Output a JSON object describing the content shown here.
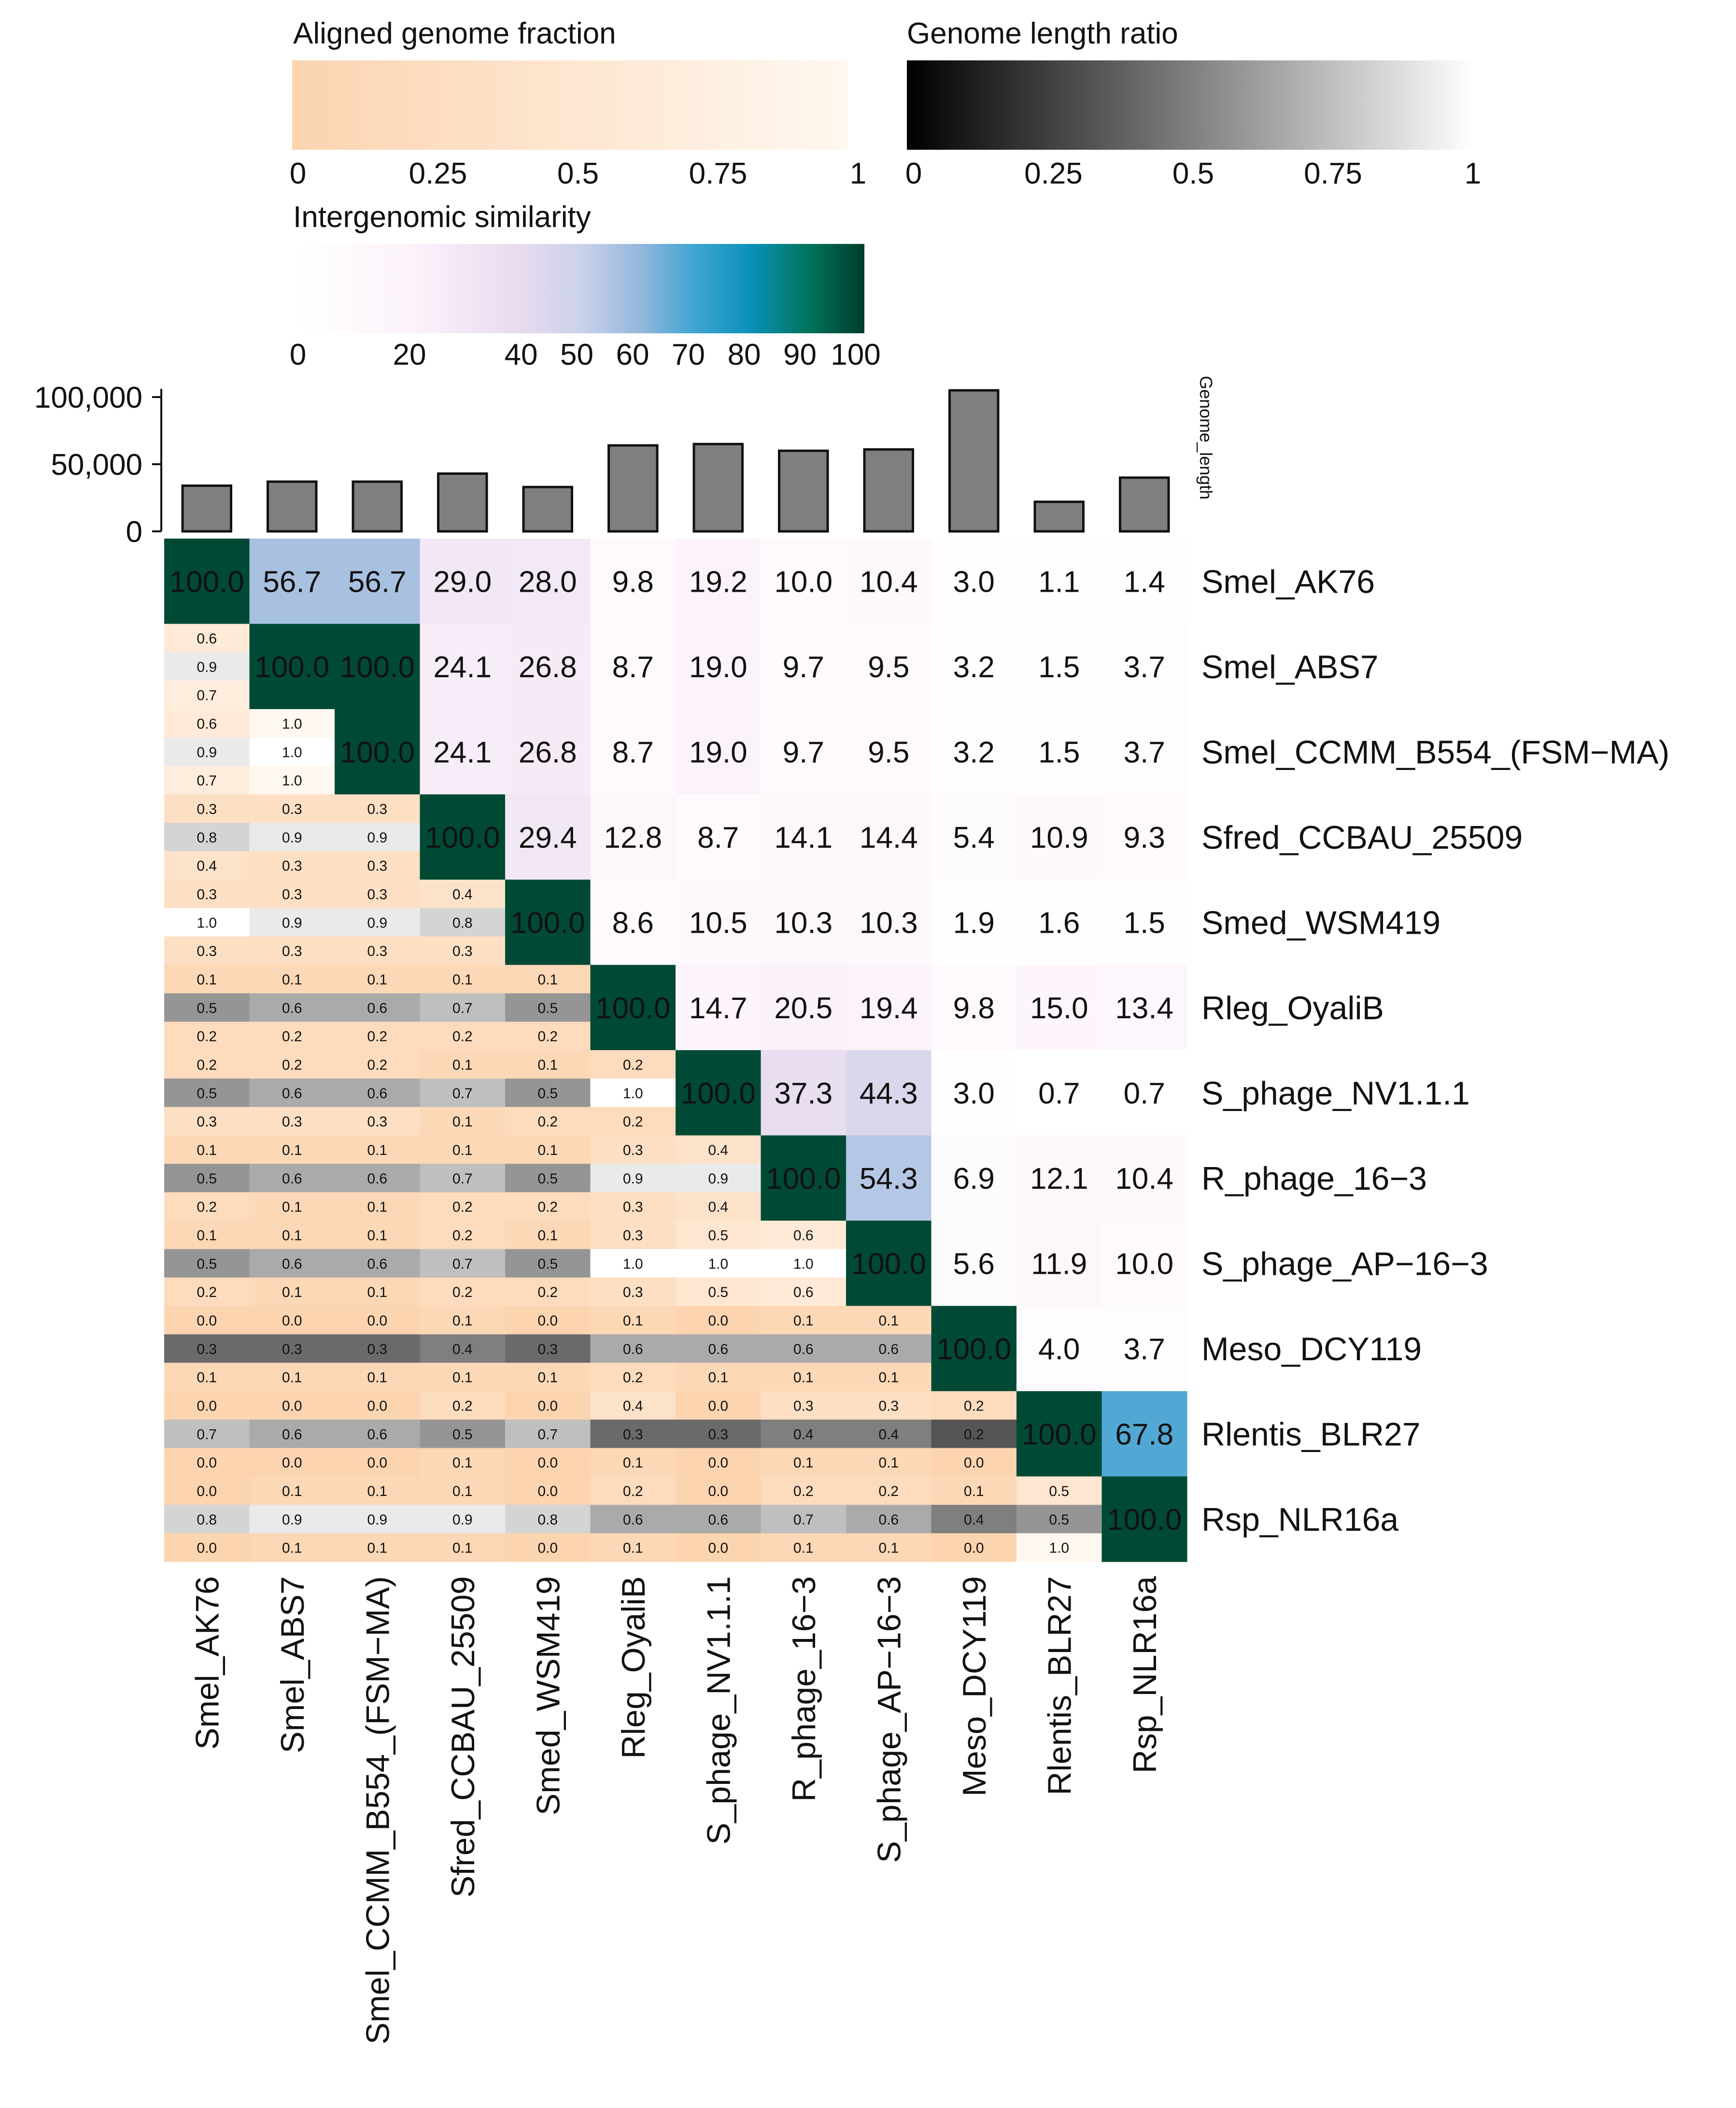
{
  "chart_data": {
    "type": "heatmap",
    "genomes": [
      "Smel_AK76",
      "Smel_ABS7",
      "Smel_CCMM_B554_(FSM−MA)",
      "Sfred_CCBAU_25509",
      "Smed_WSM419",
      "Rleg_OyaliB",
      "S_phage_NV1.1.1",
      "R_phage_16−3",
      "S_phage_AP−16−3",
      "Meso_DCY119",
      "Rlentis_BLR27",
      "Rsp_NLR16a"
    ],
    "genome_length": [
      34000,
      37000,
      37000,
      43000,
      33000,
      64000,
      65000,
      60000,
      61000,
      105000,
      22000,
      40000
    ],
    "genome_length_axis": {
      "label": "Genome_length",
      "ticks": [
        0,
        50000,
        100000
      ],
      "tick_labels": [
        "0",
        "50,000",
        "100,000"
      ],
      "ylim": [
        0,
        105000
      ]
    },
    "similarity_matrix": [
      [
        100.0,
        56.7,
        56.7,
        29.0,
        28.0,
        9.8,
        19.2,
        10.0,
        10.4,
        3.0,
        1.1,
        1.4
      ],
      [
        56.7,
        100.0,
        100.0,
        24.1,
        26.8,
        8.7,
        19.0,
        9.7,
        9.5,
        3.2,
        1.5,
        3.7
      ],
      [
        56.7,
        100.0,
        100.0,
        24.1,
        26.8,
        8.7,
        19.0,
        9.7,
        9.5,
        3.2,
        1.5,
        3.7
      ],
      [
        29.0,
        24.1,
        24.1,
        100.0,
        29.4,
        12.8,
        8.7,
        14.1,
        14.4,
        5.4,
        10.9,
        9.3
      ],
      [
        28.0,
        26.8,
        26.8,
        29.4,
        100.0,
        8.6,
        10.5,
        10.3,
        10.3,
        1.9,
        1.6,
        1.5
      ],
      [
        9.8,
        8.7,
        8.7,
        12.8,
        8.6,
        100.0,
        14.7,
        20.5,
        19.4,
        9.8,
        15.0,
        13.4
      ],
      [
        19.2,
        19.0,
        19.0,
        8.7,
        10.5,
        14.7,
        100.0,
        37.3,
        44.3,
        3.0,
        0.7,
        0.7
      ],
      [
        10.0,
        9.7,
        9.7,
        14.1,
        10.3,
        20.5,
        37.3,
        100.0,
        54.3,
        6.9,
        12.1,
        10.4
      ],
      [
        10.4,
        9.5,
        9.5,
        14.4,
        10.3,
        19.4,
        44.3,
        54.3,
        100.0,
        5.6,
        11.9,
        10.0
      ],
      [
        3.0,
        3.2,
        3.2,
        5.4,
        1.9,
        9.8,
        3.0,
        6.9,
        5.6,
        100.0,
        4.0,
        3.7
      ],
      [
        1.1,
        1.5,
        1.5,
        10.9,
        1.6,
        15.0,
        0.7,
        12.1,
        11.9,
        4.0,
        100.0,
        67.8
      ],
      [
        1.4,
        3.7,
        3.7,
        9.3,
        1.5,
        13.4,
        0.7,
        10.4,
        10.0,
        3.7,
        67.8,
        100.0
      ]
    ],
    "lower_cells": [
      [],
      [
        [
          0.6,
          0.9,
          0.7
        ]
      ],
      [
        [
          0.6,
          0.9,
          0.7
        ],
        [
          1.0,
          1.0,
          1.0
        ]
      ],
      [
        [
          0.3,
          0.8,
          0.4
        ],
        [
          0.3,
          0.9,
          0.3
        ],
        [
          0.3,
          0.9,
          0.3
        ]
      ],
      [
        [
          0.3,
          1.0,
          0.3
        ],
        [
          0.3,
          0.9,
          0.3
        ],
        [
          0.3,
          0.9,
          0.3
        ],
        [
          0.4,
          0.8,
          0.3
        ]
      ],
      [
        [
          0.1,
          0.5,
          0.2
        ],
        [
          0.1,
          0.6,
          0.2
        ],
        [
          0.1,
          0.6,
          0.2
        ],
        [
          0.1,
          0.7,
          0.2
        ],
        [
          0.1,
          0.5,
          0.2
        ]
      ],
      [
        [
          0.2,
          0.5,
          0.3
        ],
        [
          0.2,
          0.6,
          0.3
        ],
        [
          0.2,
          0.6,
          0.3
        ],
        [
          0.1,
          0.7,
          0.1
        ],
        [
          0.1,
          0.5,
          0.2
        ],
        [
          0.2,
          1.0,
          0.2
        ]
      ],
      [
        [
          0.1,
          0.5,
          0.2
        ],
        [
          0.1,
          0.6,
          0.1
        ],
        [
          0.1,
          0.6,
          0.1
        ],
        [
          0.1,
          0.7,
          0.2
        ],
        [
          0.1,
          0.5,
          0.2
        ],
        [
          0.3,
          0.9,
          0.3
        ],
        [
          0.4,
          0.9,
          0.4
        ]
      ],
      [
        [
          0.1,
          0.5,
          0.2
        ],
        [
          0.1,
          0.6,
          0.1
        ],
        [
          0.1,
          0.6,
          0.1
        ],
        [
          0.2,
          0.7,
          0.2
        ],
        [
          0.1,
          0.5,
          0.2
        ],
        [
          0.3,
          1.0,
          0.3
        ],
        [
          0.5,
          1.0,
          0.5
        ],
        [
          0.6,
          1.0,
          0.6
        ]
      ],
      [
        [
          0.0,
          0.3,
          0.1
        ],
        [
          0.0,
          0.3,
          0.1
        ],
        [
          0.0,
          0.3,
          0.1
        ],
        [
          0.1,
          0.4,
          0.1
        ],
        [
          0.0,
          0.3,
          0.1
        ],
        [
          0.1,
          0.6,
          0.2
        ],
        [
          0.0,
          0.6,
          0.1
        ],
        [
          0.1,
          0.6,
          0.1
        ],
        [
          0.1,
          0.6,
          0.1
        ]
      ],
      [
        [
          0.0,
          0.7,
          0.0
        ],
        [
          0.0,
          0.6,
          0.0
        ],
        [
          0.0,
          0.6,
          0.0
        ],
        [
          0.2,
          0.5,
          0.1
        ],
        [
          0.0,
          0.7,
          0.0
        ],
        [
          0.4,
          0.3,
          0.1
        ],
        [
          0.0,
          0.3,
          0.0
        ],
        [
          0.3,
          0.4,
          0.1
        ],
        [
          0.3,
          0.4,
          0.1
        ],
        [
          0.2,
          0.2,
          0.0
        ]
      ],
      [
        [
          0.0,
          0.8,
          0.0
        ],
        [
          0.1,
          0.9,
          0.1
        ],
        [
          0.1,
          0.9,
          0.1
        ],
        [
          0.1,
          0.9,
          0.1
        ],
        [
          0.0,
          0.8,
          0.0
        ],
        [
          0.2,
          0.6,
          0.1
        ],
        [
          0.0,
          0.6,
          0.0
        ],
        [
          0.2,
          0.7,
          0.1
        ],
        [
          0.2,
          0.6,
          0.1
        ],
        [
          0.1,
          0.4,
          0.0
        ],
        [
          0.5,
          0.5,
          1.0
        ]
      ]
    ],
    "legends": {
      "aligned": {
        "title": "Aligned genome fraction",
        "ticks": [
          "0",
          "0.25",
          "0.5",
          "0.75",
          "1"
        ],
        "colors": [
          "#fcd4b0",
          "#fff8f0"
        ]
      },
      "ratio": {
        "title": "Genome length ratio",
        "ticks": [
          "0",
          "0.25",
          "0.5",
          "0.75",
          "1"
        ],
        "colors": [
          "#000000",
          "#ffffff"
        ]
      },
      "similarity": {
        "title": "Intergenomic similarity",
        "ticks": [
          "0",
          "20",
          "40",
          "50",
          "60",
          "70",
          "80",
          "90",
          "100"
        ]
      }
    }
  }
}
